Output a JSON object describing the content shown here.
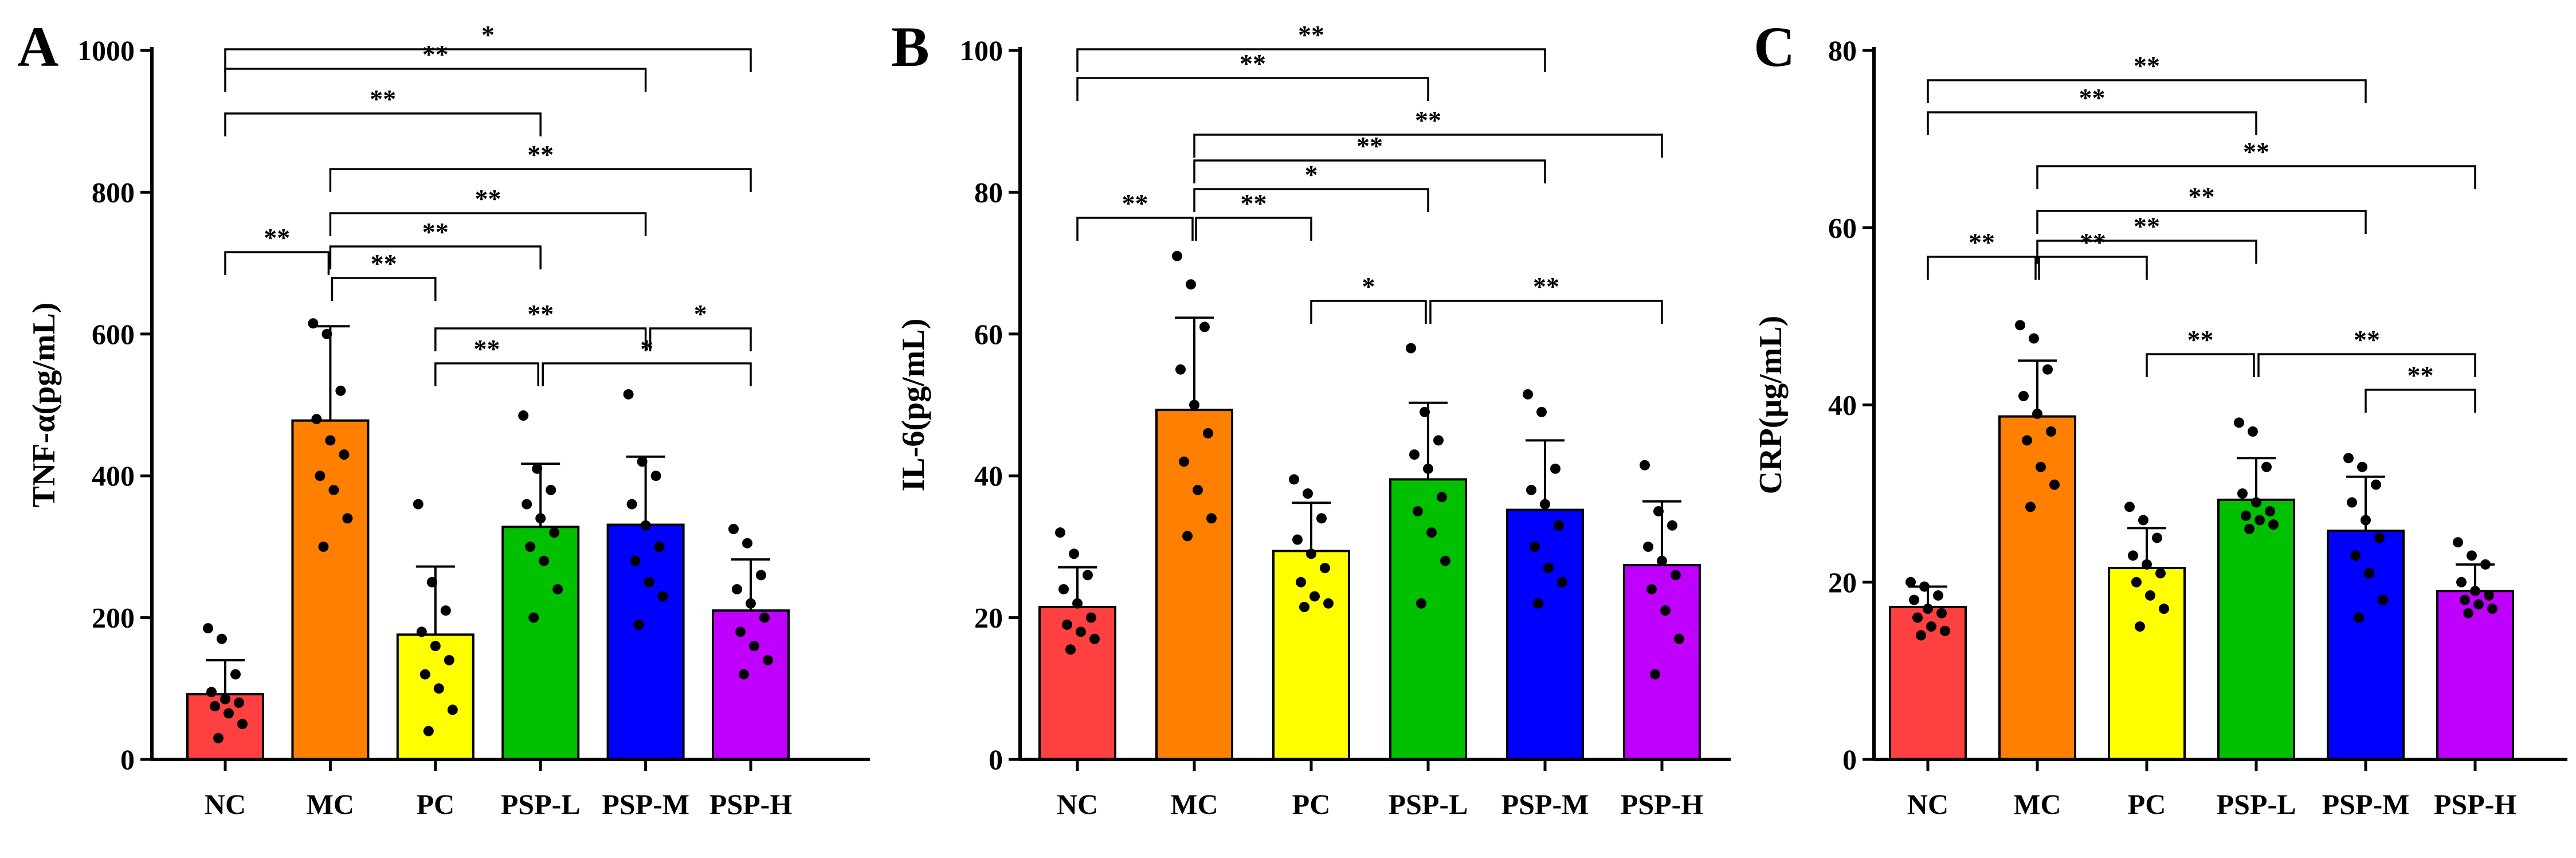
{
  "categories": [
    "NC",
    "MC",
    "PC",
    "PSP-L",
    "PSP-M",
    "PSP-H"
  ],
  "colors": [
    "#FF4040",
    "#FF8000",
    "#FFFF00",
    "#00C000",
    "#0000FF",
    "#C000FF"
  ],
  "chart_data": [
    {
      "type": "bar",
      "panel": "A",
      "ylabel": "TNF-α(pg/mL)",
      "ylim": [
        0,
        1000
      ],
      "yticks": [
        0,
        200,
        400,
        600,
        800,
        1000
      ],
      "categories": [
        "NC",
        "MC",
        "PC",
        "PSP-L",
        "PSP-M",
        "PSP-H"
      ],
      "values": [
        92,
        478,
        176,
        328,
        331,
        210
      ],
      "errors": [
        48,
        133,
        96,
        89,
        96,
        72
      ],
      "points": [
        [
          185,
          170,
          120,
          95,
          85,
          80,
          75,
          65,
          50,
          30
        ],
        [
          615,
          600,
          520,
          480,
          450,
          430,
          400,
          380,
          340,
          300
        ],
        [
          360,
          250,
          210,
          180,
          160,
          140,
          120,
          100,
          70,
          40
        ],
        [
          485,
          410,
          380,
          360,
          340,
          320,
          300,
          280,
          240,
          200
        ],
        [
          515,
          420,
          400,
          360,
          330,
          300,
          280,
          250,
          230,
          190
        ],
        [
          325,
          305,
          260,
          240,
          220,
          200,
          180,
          160,
          140,
          120
        ]
      ],
      "comparisons": [
        {
          "from": 0,
          "to": 5,
          "label": "*"
        },
        {
          "from": 0,
          "to": 4,
          "label": "**"
        },
        {
          "from": 0,
          "to": 3,
          "label": "**"
        },
        {
          "from": 1,
          "to": 5,
          "label": "**"
        },
        {
          "from": 1,
          "to": 4,
          "label": "**"
        },
        {
          "from": 1,
          "to": 3,
          "label": "**"
        },
        {
          "from": 0,
          "to": 1,
          "label": "**"
        },
        {
          "from": 1,
          "to": 2,
          "label": "**"
        },
        {
          "from": 2,
          "to": 4,
          "label": "**"
        },
        {
          "from": 4,
          "to": 5,
          "label": "*"
        },
        {
          "from": 2,
          "to": 3,
          "label": "**"
        },
        {
          "from": 3,
          "to": 5,
          "label": "*"
        }
      ]
    },
    {
      "type": "bar",
      "panel": "B",
      "ylabel": "IL-6(pg/mL)",
      "ylim": [
        0,
        100
      ],
      "yticks": [
        0,
        20,
        40,
        60,
        80,
        100
      ],
      "categories": [
        "NC",
        "MC",
        "PC",
        "PSP-L",
        "PSP-M",
        "PSP-H"
      ],
      "values": [
        21.5,
        49.3,
        29.4,
        39.5,
        35.2,
        27.4
      ],
      "errors": [
        5.6,
        13,
        6.8,
        10.8,
        9.8,
        9
      ],
      "points": [
        [
          32,
          29,
          26,
          24,
          22,
          20,
          19,
          18,
          17,
          15.5
        ],
        [
          71,
          67,
          61,
          55,
          50,
          46,
          42,
          38,
          34,
          31.5
        ],
        [
          39.5,
          37.5,
          34,
          31,
          29,
          27,
          25,
          23,
          22,
          21.5
        ],
        [
          58,
          49,
          45,
          43,
          41,
          37,
          35,
          32,
          28,
          22
        ],
        [
          51.5,
          49,
          41,
          38,
          36,
          33,
          30,
          27,
          25,
          22
        ],
        [
          41.5,
          35,
          33,
          30,
          28,
          26,
          24,
          21,
          17,
          12
        ]
      ],
      "comparisons": [
        {
          "from": 0,
          "to": 4,
          "label": "**"
        },
        {
          "from": 0,
          "to": 3,
          "label": "**"
        },
        {
          "from": 1,
          "to": 5,
          "label": "**"
        },
        {
          "from": 1,
          "to": 4,
          "label": "**"
        },
        {
          "from": 1,
          "to": 3,
          "label": "*"
        },
        {
          "from": 0,
          "to": 1,
          "label": "**"
        },
        {
          "from": 1,
          "to": 2,
          "label": "**"
        },
        {
          "from": 2,
          "to": 3,
          "label": "*"
        },
        {
          "from": 3,
          "to": 5,
          "label": "**"
        }
      ]
    },
    {
      "type": "bar",
      "panel": "C",
      "ylabel": "CRP(μg/mL)",
      "ylim": [
        0,
        80
      ],
      "yticks": [
        0,
        20,
        40,
        60,
        80
      ],
      "categories": [
        "NC",
        "MC",
        "PC",
        "PSP-L",
        "PSP-M",
        "PSP-H"
      ],
      "values": [
        17.2,
        38.7,
        21.6,
        29.3,
        25.8,
        19
      ],
      "errors": [
        2.3,
        6.3,
        4.5,
        4.7,
        6.1,
        3
      ],
      "points": [
        [
          20,
          19.5,
          18.5,
          18,
          17,
          16.5,
          16,
          15,
          14.5,
          14
        ],
        [
          49,
          47.5,
          44,
          41,
          39,
          37,
          36,
          33,
          31,
          28.5
        ],
        [
          28.5,
          27,
          25,
          23,
          22,
          21,
          20,
          18.5,
          17,
          15
        ],
        [
          38,
          37,
          33,
          30,
          29,
          28,
          27.5,
          27,
          26.5,
          26
        ],
        [
          34,
          33,
          31,
          29,
          27,
          25,
          23,
          21,
          18,
          16
        ],
        [
          24.5,
          23,
          22,
          20,
          19,
          18.5,
          18,
          17.5,
          17,
          16.5
        ]
      ],
      "comparisons": [
        {
          "from": 0,
          "to": 4,
          "label": "**"
        },
        {
          "from": 0,
          "to": 3,
          "label": "**"
        },
        {
          "from": 1,
          "to": 5,
          "label": "**"
        },
        {
          "from": 1,
          "to": 4,
          "label": "**"
        },
        {
          "from": 1,
          "to": 3,
          "label": "**"
        },
        {
          "from": 0,
          "to": 1,
          "label": "**"
        },
        {
          "from": 1,
          "to": 2,
          "label": "**"
        },
        {
          "from": 2,
          "to": 3,
          "label": "**"
        },
        {
          "from": 3,
          "to": 5,
          "label": "**"
        },
        {
          "from": 4,
          "to": 5,
          "label": "**"
        }
      ]
    }
  ]
}
